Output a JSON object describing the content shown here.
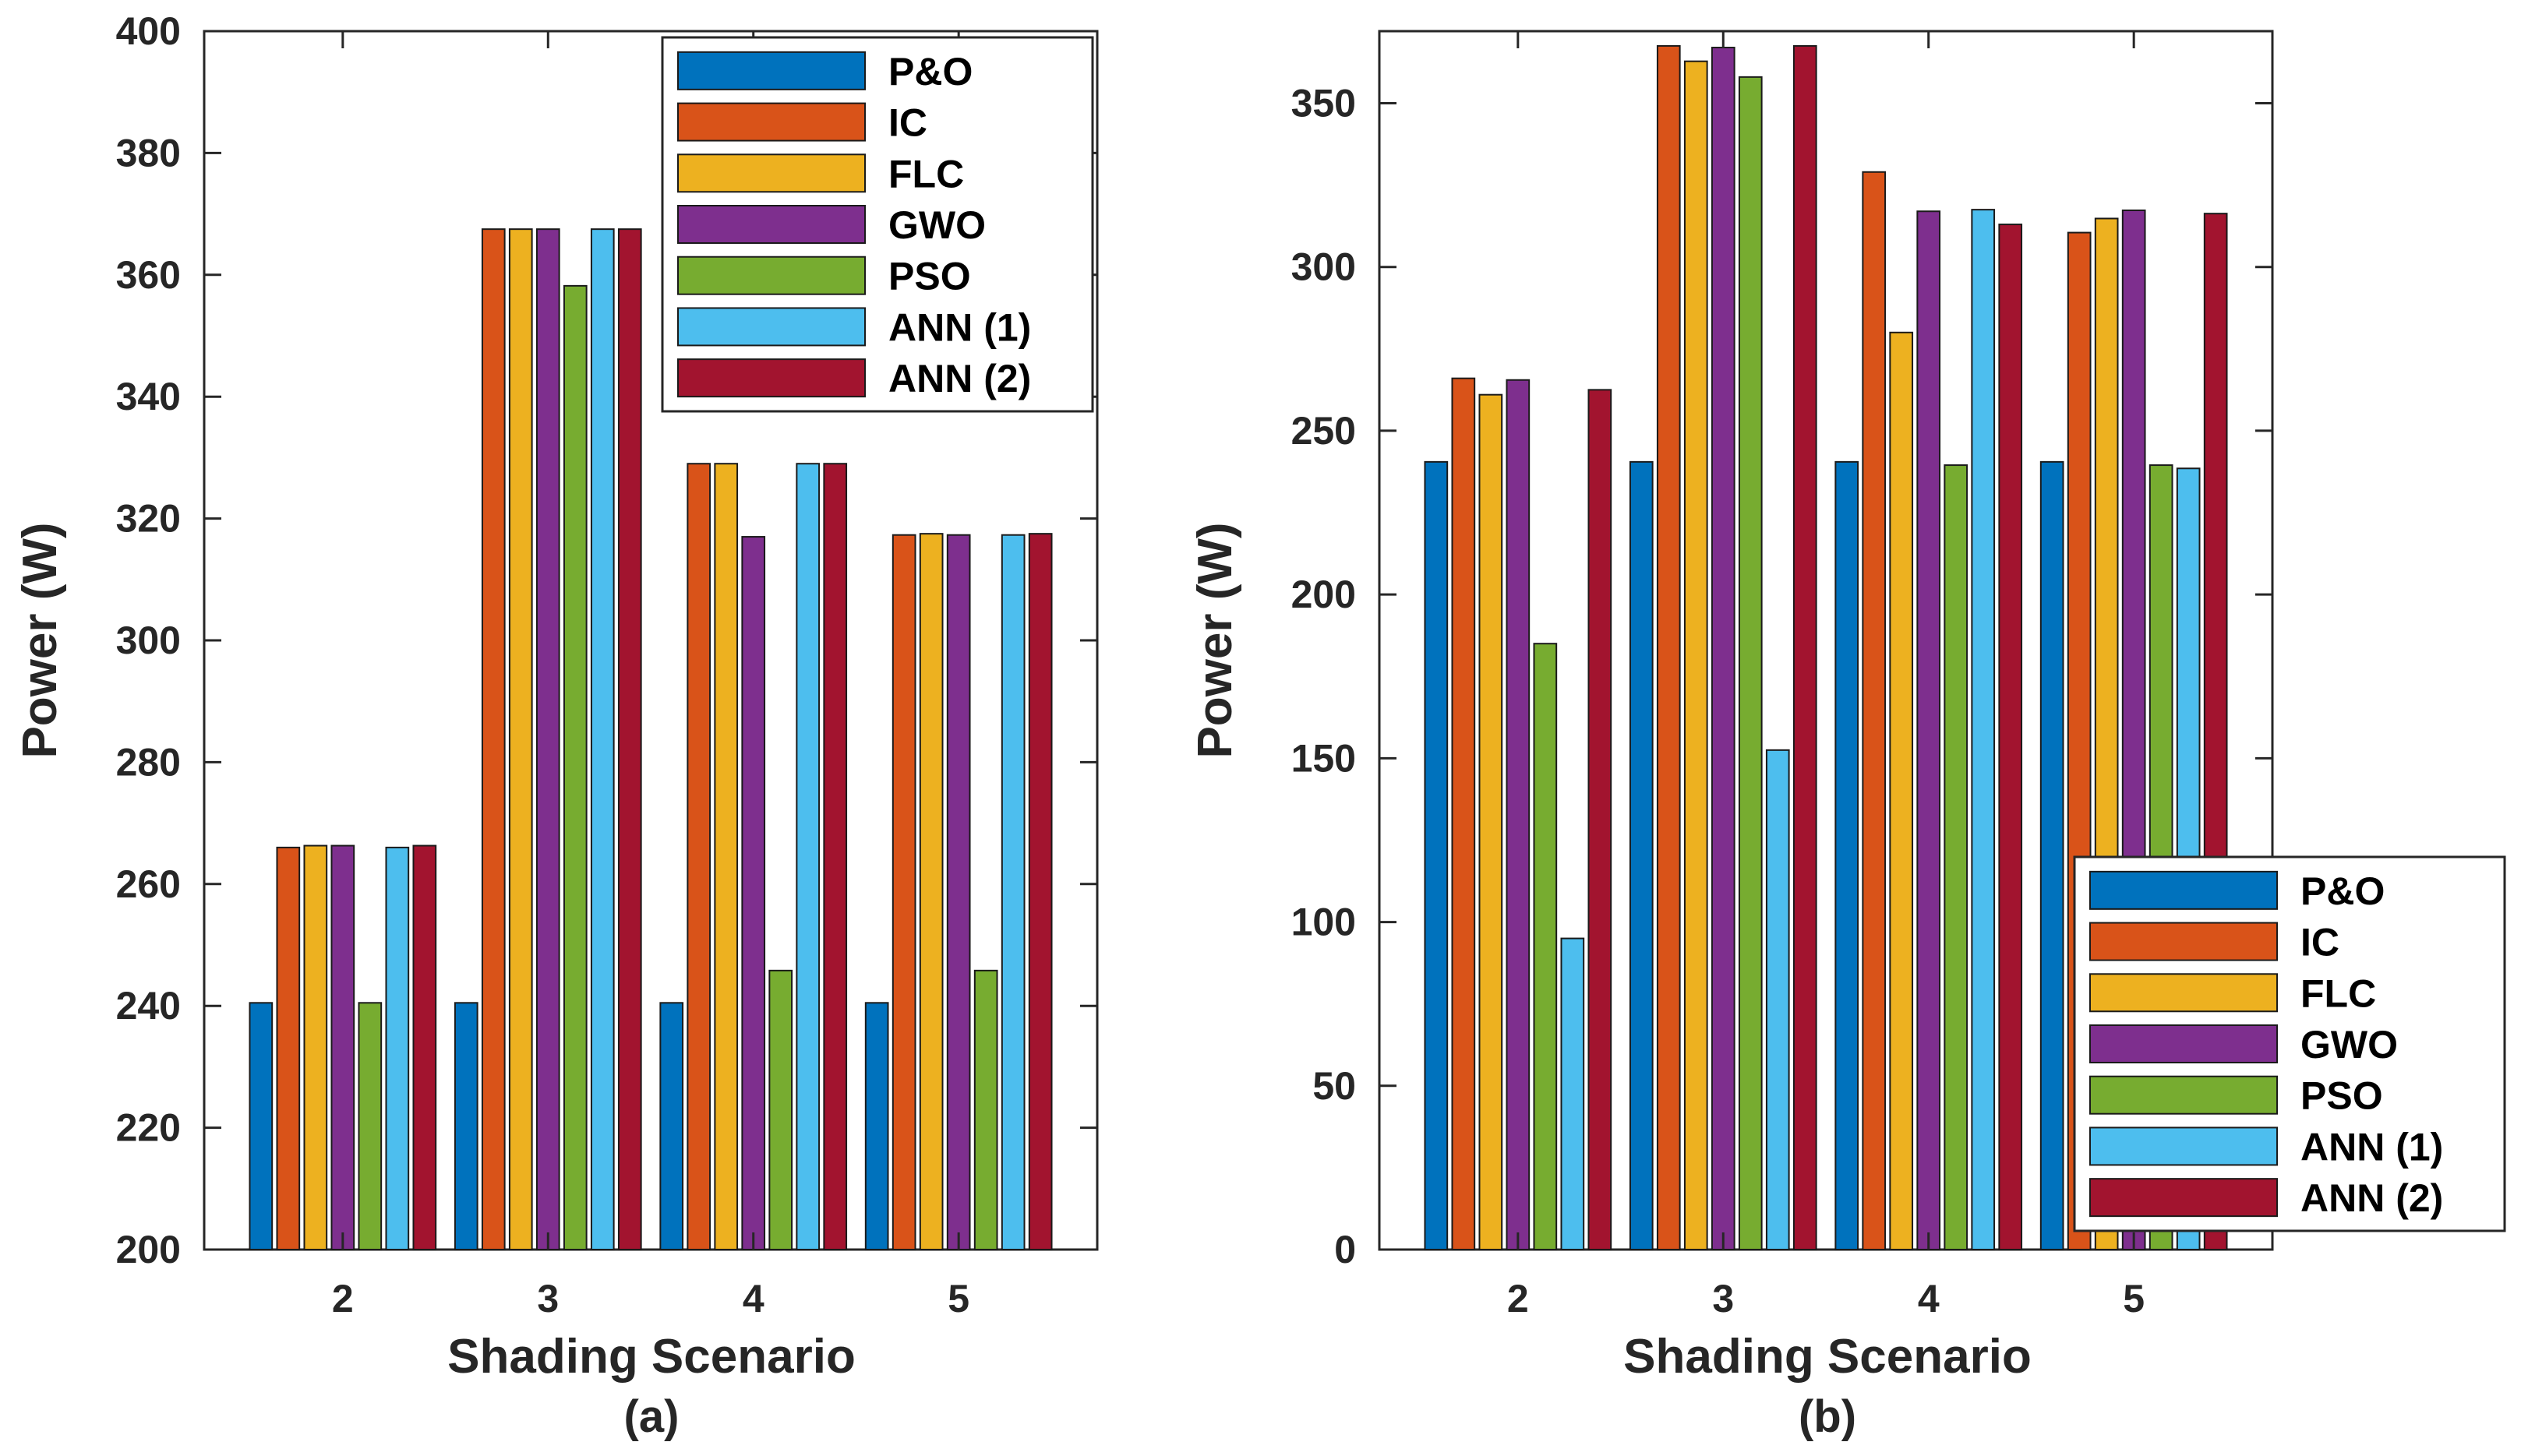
{
  "chart_data": [
    {
      "type": "bar",
      "caption": "(a)",
      "xlabel": "Shading Scenario",
      "ylabel": "Power (W)",
      "categories": [
        "2",
        "3",
        "4",
        "5"
      ],
      "ylim": [
        200,
        400
      ],
      "yticks": [
        "200",
        "220",
        "240",
        "260",
        "280",
        "300",
        "320",
        "340",
        "360",
        "380",
        "400"
      ],
      "legend_position": "top-right",
      "series": [
        {
          "name": "P&O",
          "color": "#0072BD",
          "values": [
            240.5,
            240.5,
            240.5,
            240.5
          ]
        },
        {
          "name": "IC",
          "color": "#D95319",
          "values": [
            266,
            367.5,
            329,
            317.3
          ]
        },
        {
          "name": "FLC",
          "color": "#EDB120",
          "values": [
            266.3,
            367.5,
            329,
            317.5
          ]
        },
        {
          "name": "GWO",
          "color": "#7E2F8E",
          "values": [
            266.3,
            367.5,
            317,
            317.3
          ]
        },
        {
          "name": "PSO",
          "color": "#77AC30",
          "values": [
            240.5,
            358.2,
            245.8,
            245.8
          ]
        },
        {
          "name": "ANN (1)",
          "color": "#4DBEEE",
          "values": [
            266,
            367.5,
            329,
            317.3
          ]
        },
        {
          "name": "ANN (2)",
          "color": "#A2142F",
          "values": [
            266.3,
            367.5,
            329,
            317.5
          ]
        }
      ]
    },
    {
      "type": "bar",
      "caption": "(b)",
      "xlabel": "Shading Scenario",
      "ylabel": "Power (W)",
      "categories": [
        "2",
        "3",
        "4",
        "5"
      ],
      "ylim": [
        0,
        372
      ],
      "yticks": [
        "0",
        "50",
        "100",
        "150",
        "200",
        "250",
        "300",
        "350"
      ],
      "legend_position": "bottom-right",
      "series": [
        {
          "name": "P&O",
          "color": "#0072BD",
          "values": [
            240.5,
            240.5,
            240.5,
            240.5
          ]
        },
        {
          "name": "IC",
          "color": "#D95319",
          "values": [
            266,
            367.5,
            329,
            310.5
          ]
        },
        {
          "name": "FLC",
          "color": "#EDB120",
          "values": [
            261,
            362.8,
            280,
            314.8
          ]
        },
        {
          "name": "GWO",
          "color": "#7E2F8E",
          "values": [
            265.5,
            367,
            317,
            317.3
          ]
        },
        {
          "name": "PSO",
          "color": "#77AC30",
          "values": [
            185,
            358,
            239.5,
            239.5
          ]
        },
        {
          "name": "ANN (1)",
          "color": "#4DBEEE",
          "values": [
            95,
            152.5,
            317.5,
            238.5
          ]
        },
        {
          "name": "ANN (2)",
          "color": "#A2142F",
          "values": [
            262.5,
            367.5,
            313,
            316.3
          ]
        }
      ]
    }
  ]
}
